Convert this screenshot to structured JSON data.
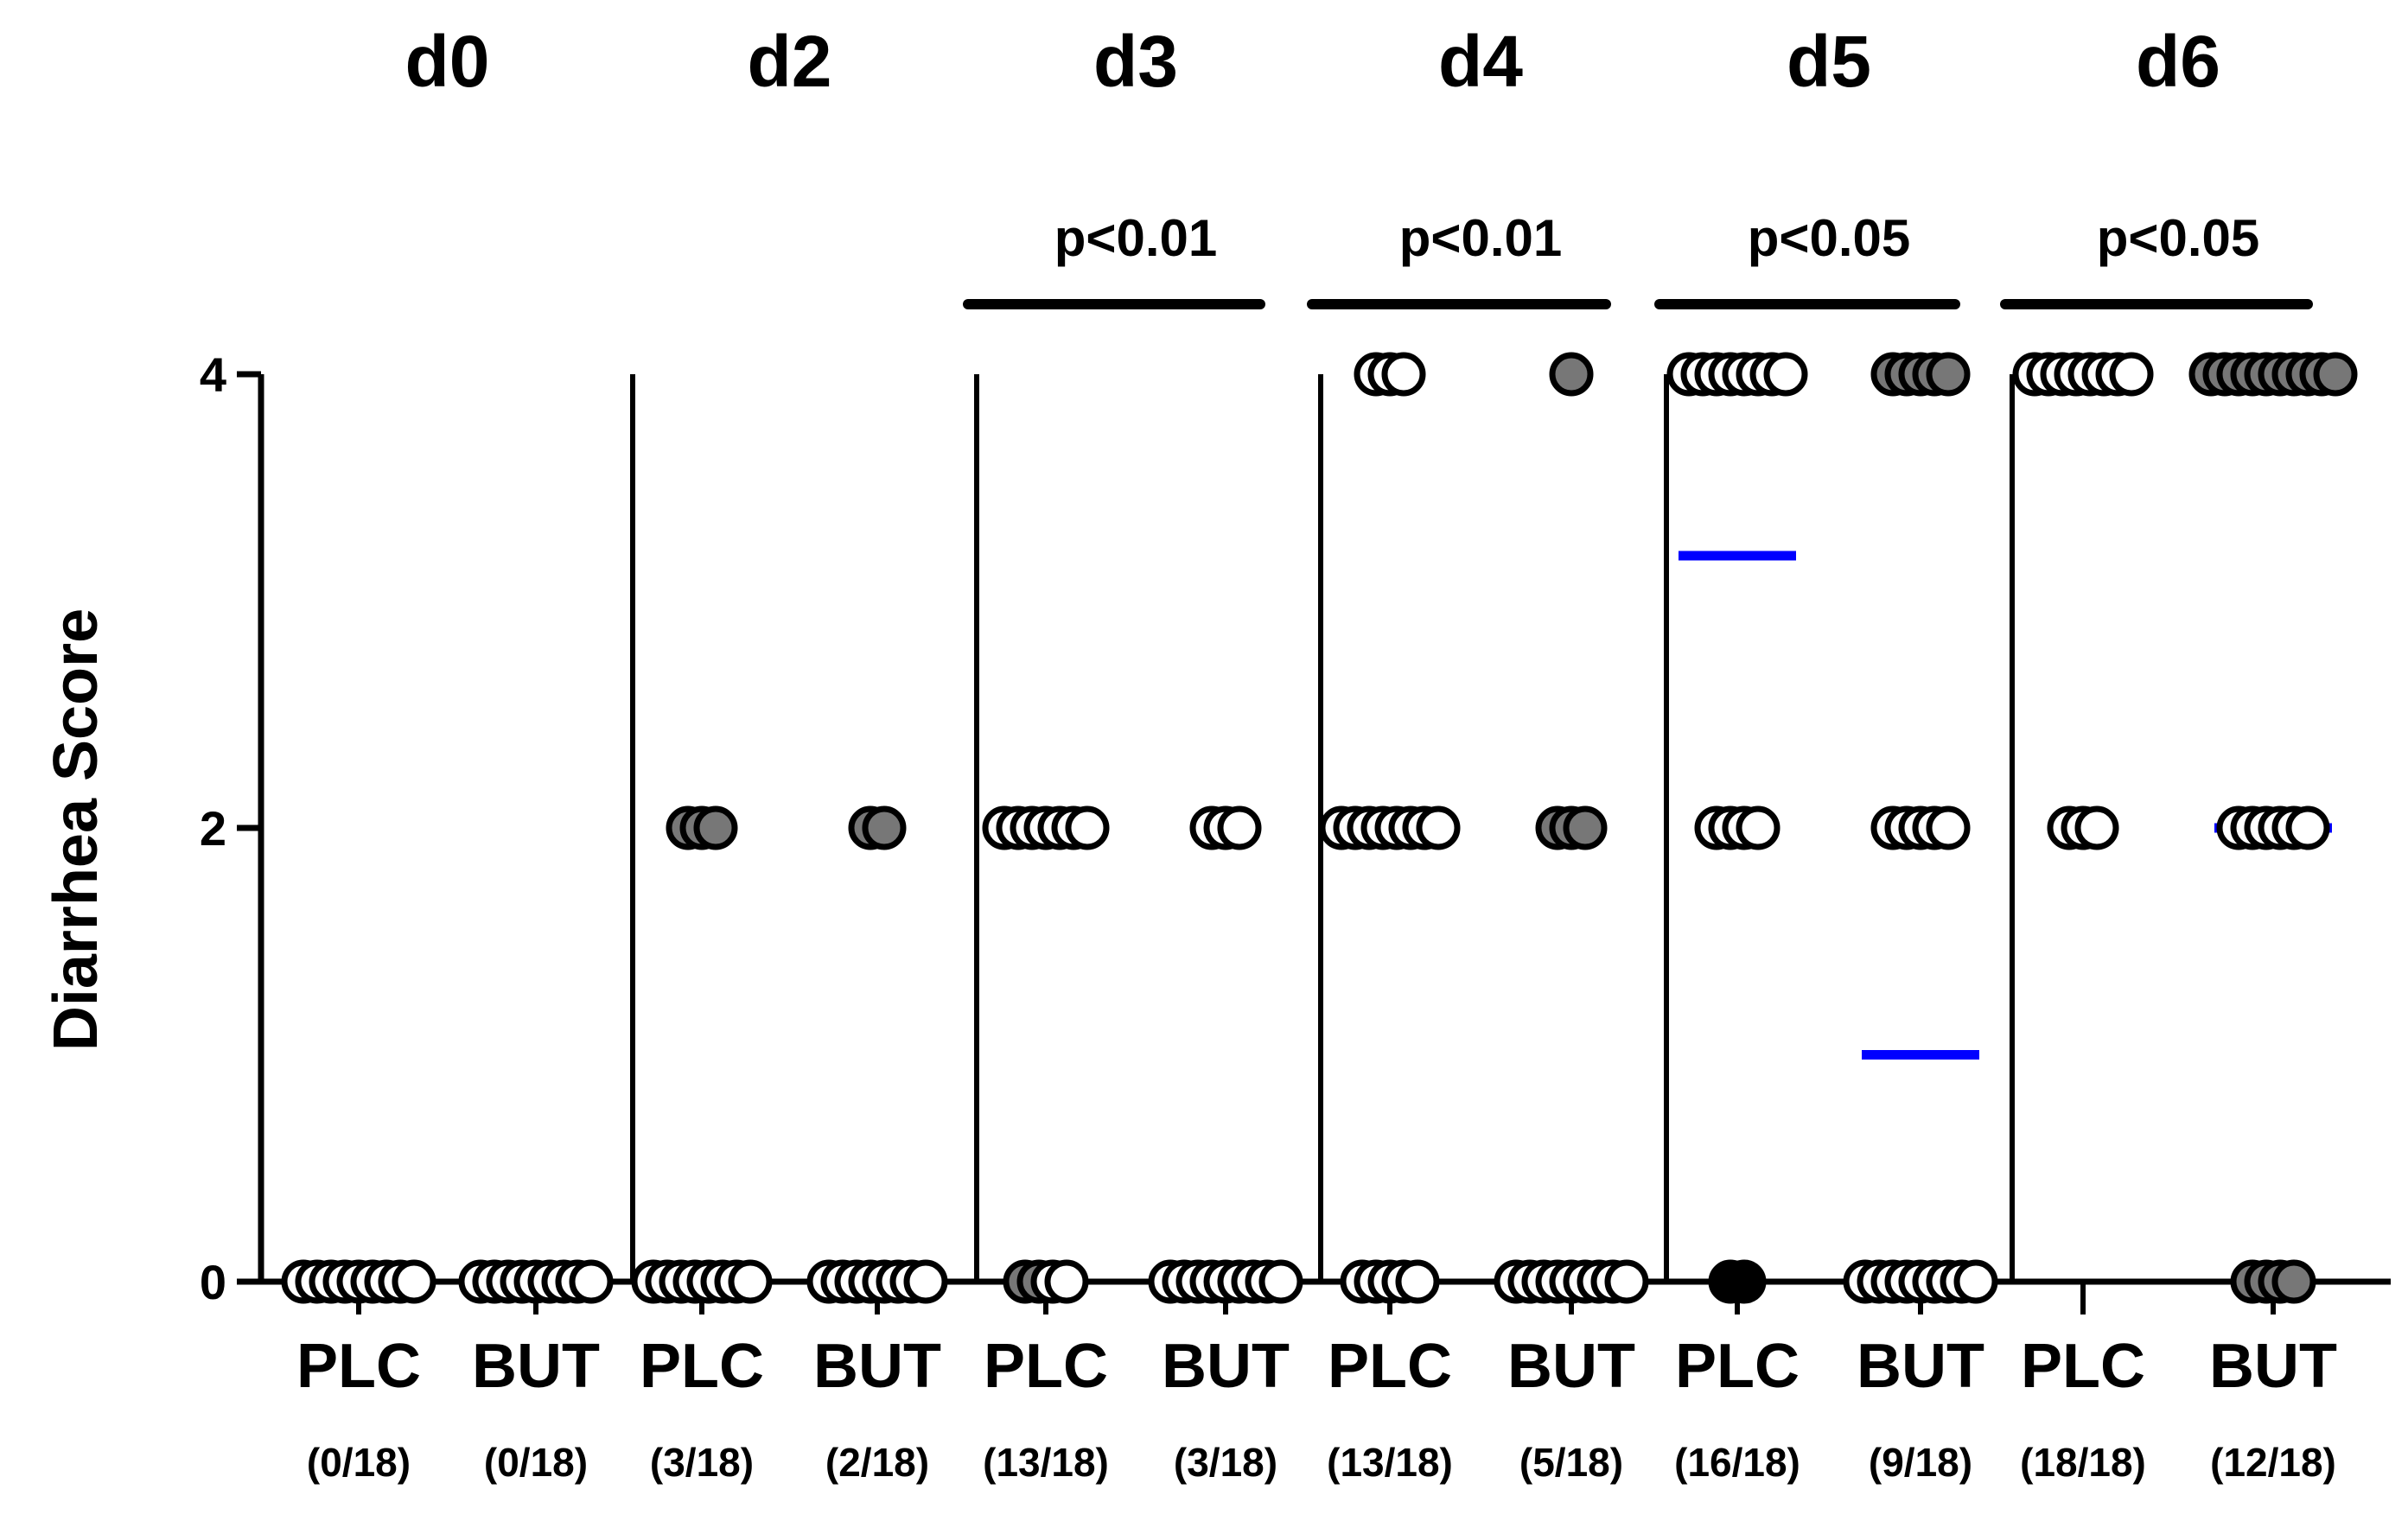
{
  "chart_data": {
    "type": "scatter",
    "title": "",
    "xlabel": "",
    "ylabel": "Diarrhea Score",
    "ylim": [
      0,
      4
    ],
    "yticks": [
      0,
      2,
      4
    ],
    "grid": false,
    "legend": "none",
    "colors": {
      "median_line": "#0000ff",
      "point_filled_dark": "#000000",
      "point_filled_grey": "#777777",
      "point_open": "#ffffff",
      "point_outline": "#000000"
    },
    "panels": [
      {
        "day": "d0",
        "pvalue": "",
        "groups": [
          {
            "label": "PLC",
            "count_label": "(0/18)",
            "median": 0,
            "points": [
              {
                "y": 0,
                "fill": "open",
                "n": 9
              }
            ]
          },
          {
            "label": "BUT",
            "count_label": "(0/18)",
            "median": 0,
            "points": [
              {
                "y": 0,
                "fill": "open",
                "n": 9
              }
            ]
          }
        ]
      },
      {
        "day": "d2",
        "pvalue": "",
        "groups": [
          {
            "label": "PLC",
            "count_label": "(3/18)",
            "median": 0,
            "points": [
              {
                "y": 2,
                "fill": "grey",
                "n": 3
              },
              {
                "y": 0,
                "fill": "open",
                "n": 8
              }
            ]
          },
          {
            "label": "BUT",
            "count_label": "(2/18)",
            "median": 0,
            "points": [
              {
                "y": 2,
                "fill": "grey",
                "n": 2
              },
              {
                "y": 0,
                "fill": "open",
                "n": 8
              }
            ]
          }
        ]
      },
      {
        "day": "d3",
        "pvalue": "p<0.01",
        "groups": [
          {
            "label": "PLC",
            "count_label": "(13/18)",
            "median": 2,
            "points": [
              {
                "y": 2,
                "fill": "open",
                "n": 7
              },
              {
                "y": 0,
                "fill": "grey",
                "n": 2
              },
              {
                "y": 0,
                "fill": "open",
                "n": 2
              }
            ]
          },
          {
            "label": "BUT",
            "count_label": "(3/18)",
            "median": 0,
            "points": [
              {
                "y": 2,
                "fill": "open",
                "n": 3
              },
              {
                "y": 0,
                "fill": "open",
                "n": 9
              }
            ]
          }
        ]
      },
      {
        "day": "d4",
        "pvalue": "p<0.01",
        "groups": [
          {
            "label": "PLC",
            "count_label": "(13/18)",
            "median": 2,
            "points": [
              {
                "y": 4,
                "fill": "open",
                "n": 3
              },
              {
                "y": 2,
                "fill": "open",
                "n": 8
              },
              {
                "y": 0,
                "fill": "open",
                "n": 5
              }
            ]
          },
          {
            "label": "BUT",
            "count_label": "(5/18)",
            "median": 0,
            "points": [
              {
                "y": 4,
                "fill": "grey",
                "n": 1
              },
              {
                "y": 2,
                "fill": "grey",
                "n": 3
              },
              {
                "y": 0,
                "fill": "open",
                "n": 9
              }
            ]
          }
        ]
      },
      {
        "day": "d5",
        "pvalue": "p<0.05",
        "groups": [
          {
            "label": "PLC",
            "count_label": "(16/18)",
            "median": 3.2,
            "points": [
              {
                "y": 4,
                "fill": "open",
                "n": 8
              },
              {
                "y": 2,
                "fill": "open",
                "n": 4
              },
              {
                "y": 0,
                "fill": "dark",
                "n": 2
              }
            ]
          },
          {
            "label": "BUT",
            "count_label": "(9/18)",
            "median": 1,
            "points": [
              {
                "y": 4,
                "fill": "grey",
                "n": 5
              },
              {
                "y": 2,
                "fill": "open",
                "n": 5
              },
              {
                "y": 0,
                "fill": "open",
                "n": 9
              }
            ]
          }
        ]
      },
      {
        "day": "d6",
        "pvalue": "p<0.05",
        "groups": [
          {
            "label": "PLC",
            "count_label": "(18/18)",
            "median": 4,
            "points": [
              {
                "y": 4,
                "fill": "open",
                "n": 8
              },
              {
                "y": 2,
                "fill": "open",
                "n": 3
              }
            ]
          },
          {
            "label": "BUT",
            "count_label": "(12/18)",
            "median": 2,
            "points": [
              {
                "y": 4,
                "fill": "grey",
                "n": 10
              },
              {
                "y": 2,
                "fill": "open",
                "n": 6
              },
              {
                "y": 0,
                "fill": "grey",
                "n": 4
              }
            ]
          }
        ]
      }
    ]
  }
}
